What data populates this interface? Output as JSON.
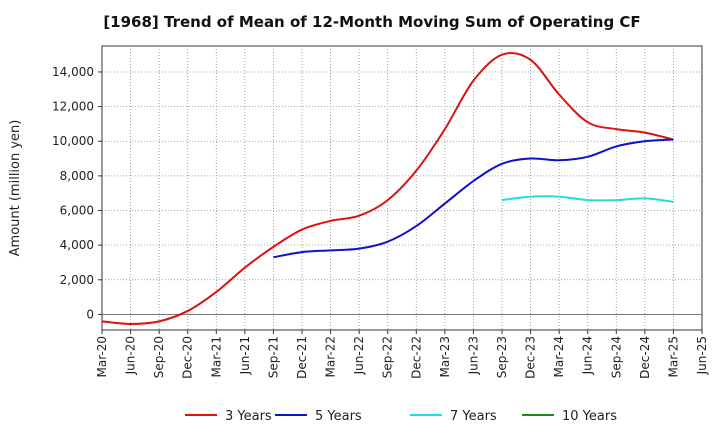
{
  "chart_data": {
    "type": "line",
    "title": "[1968]  Trend of Mean of 12-Month Moving Sum of Operating CF",
    "xlabel": "",
    "ylabel": "Amount (million yen)",
    "ylim": [
      -900,
      15500
    ],
    "yticks": [
      0,
      2000,
      4000,
      6000,
      8000,
      10000,
      12000,
      14000
    ],
    "ytick_labels": [
      "0",
      "2,000",
      "4,000",
      "6,000",
      "8,000",
      "10,000",
      "12,000",
      "14,000"
    ],
    "xticks": [
      "Mar-20",
      "Jun-20",
      "Sep-20",
      "Dec-20",
      "Mar-21",
      "Jun-21",
      "Sep-21",
      "Dec-21",
      "Mar-22",
      "Jun-22",
      "Sep-22",
      "Dec-22",
      "Mar-23",
      "Jun-23",
      "Sep-23",
      "Dec-23",
      "Mar-24",
      "Jun-24",
      "Sep-24",
      "Dec-24",
      "Mar-25",
      "Jun-25"
    ],
    "grid": true,
    "legend_position": "bottom",
    "series": [
      {
        "name": "3 Years",
        "color": "#dd1111",
        "start_index": 0,
        "values": [
          -400,
          -550,
          -400,
          200,
          1300,
          2700,
          3900,
          4900,
          5400,
          5700,
          6600,
          8300,
          10700,
          13500,
          15000,
          14700,
          12700,
          11100,
          10700,
          10500,
          10100
        ]
      },
      {
        "name": "5 Years",
        "color": "#1111cc",
        "start_index": 6,
        "values": [
          3300,
          3600,
          3700,
          3800,
          4200,
          5100,
          6400,
          7700,
          8700,
          9000,
          8900,
          9100,
          9700,
          10000,
          10100
        ]
      },
      {
        "name": "7 Years",
        "color": "#22dddd",
        "start_index": 14,
        "values": [
          6600,
          6800,
          6800,
          6600,
          6600,
          6700,
          6500
        ]
      },
      {
        "name": "10 Years",
        "color": "#228822",
        "start_index": 21,
        "values": []
      }
    ]
  }
}
